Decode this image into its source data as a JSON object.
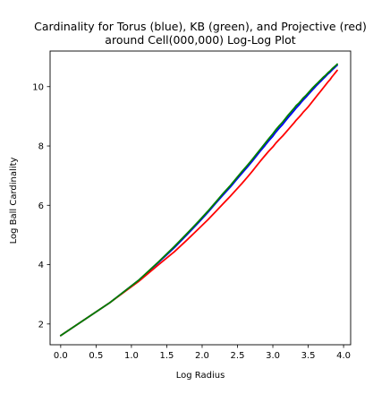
{
  "chart_data": {
    "type": "line",
    "title_line1": "Cardinality for Torus (blue), KB (green), and Projective (red)",
    "title_line2": "around Cell(000,000) Log-Log Plot",
    "xlabel": "Log Radius",
    "ylabel": "Log Ball Cardinality",
    "xlim": [
      -0.15,
      4.1
    ],
    "ylim": [
      1.3,
      11.2
    ],
    "xticks": [
      0.0,
      0.5,
      1.0,
      1.5,
      2.0,
      2.5,
      3.0,
      3.5,
      4.0
    ],
    "xtick_labels": [
      "0.0",
      "0.5",
      "1.0",
      "1.5",
      "2.0",
      "2.5",
      "3.0",
      "3.5",
      "4.0"
    ],
    "yticks": [
      2,
      4,
      6,
      8,
      10
    ],
    "ytick_labels": [
      "2",
      "4",
      "6",
      "8",
      "10"
    ],
    "grid": false,
    "series": [
      {
        "color": "#0000ff",
        "x": [
          0.0,
          0.69,
          1.1,
          1.39,
          1.61,
          1.79,
          1.95,
          2.08,
          2.2,
          2.3,
          2.4,
          2.48,
          2.56,
          2.64,
          2.71,
          2.77,
          2.83,
          2.89,
          2.94,
          3.0,
          3.04,
          3.09,
          3.14,
          3.18,
          3.22,
          3.26,
          3.3,
          3.33,
          3.37,
          3.4,
          3.43,
          3.47,
          3.5,
          3.53,
          3.56,
          3.58,
          3.61,
          3.64,
          3.66,
          3.69,
          3.71,
          3.74,
          3.76,
          3.78,
          3.81,
          3.83,
          3.85,
          3.87,
          3.89,
          3.91
        ],
        "y": [
          1.61,
          2.71,
          3.47,
          4.09,
          4.58,
          5.02,
          5.42,
          5.76,
          6.09,
          6.36,
          6.62,
          6.85,
          7.07,
          7.29,
          7.49,
          7.67,
          7.85,
          8.02,
          8.17,
          8.33,
          8.46,
          8.6,
          8.73,
          8.85,
          8.97,
          9.08,
          9.19,
          9.28,
          9.38,
          9.47,
          9.55,
          9.65,
          9.73,
          9.81,
          9.89,
          9.94,
          10.02,
          10.09,
          10.14,
          10.21,
          10.26,
          10.33,
          10.38,
          10.43,
          10.49,
          10.54,
          10.59,
          10.63,
          10.68,
          10.72
        ]
      },
      {
        "color": "#ff0000",
        "x": [
          0.0,
          0.69,
          1.1,
          1.39,
          1.61,
          1.79,
          1.95,
          2.08,
          2.2,
          2.3,
          2.4,
          2.48,
          2.56,
          2.64,
          2.71,
          2.77,
          2.83,
          2.89,
          2.94,
          3.0,
          3.04,
          3.09,
          3.14,
          3.18,
          3.22,
          3.26,
          3.3,
          3.33,
          3.37,
          3.4,
          3.43,
          3.47,
          3.5,
          3.53,
          3.56,
          3.58,
          3.61,
          3.64,
          3.66,
          3.69,
          3.71,
          3.74,
          3.76,
          3.78,
          3.81,
          3.83,
          3.85,
          3.87,
          3.89,
          3.91
        ],
        "y": [
          1.61,
          2.71,
          3.43,
          4.01,
          4.44,
          4.84,
          5.21,
          5.51,
          5.81,
          6.06,
          6.31,
          6.52,
          6.73,
          6.95,
          7.15,
          7.33,
          7.51,
          7.68,
          7.82,
          7.97,
          8.09,
          8.22,
          8.34,
          8.45,
          8.56,
          8.67,
          8.78,
          8.87,
          8.97,
          9.05,
          9.14,
          9.24,
          9.32,
          9.41,
          9.5,
          9.56,
          9.65,
          9.74,
          9.8,
          9.89,
          9.95,
          10.04,
          10.1,
          10.16,
          10.24,
          10.31,
          10.37,
          10.43,
          10.49,
          10.55
        ]
      },
      {
        "color": "#008000",
        "x": [
          0.0,
          0.69,
          1.1,
          1.39,
          1.61,
          1.79,
          1.95,
          2.08,
          2.2,
          2.3,
          2.4,
          2.48,
          2.56,
          2.64,
          2.71,
          2.77,
          2.83,
          2.89,
          2.94,
          3.0,
          3.04,
          3.09,
          3.14,
          3.18,
          3.22,
          3.26,
          3.3,
          3.33,
          3.37,
          3.4,
          3.43,
          3.47,
          3.5,
          3.53,
          3.56,
          3.58,
          3.61,
          3.64,
          3.66,
          3.69,
          3.71,
          3.74,
          3.76,
          3.78,
          3.81,
          3.83,
          3.85,
          3.87,
          3.89,
          3.91
        ],
        "y": [
          1.61,
          2.71,
          3.47,
          4.11,
          4.62,
          5.06,
          5.46,
          5.8,
          6.13,
          6.41,
          6.67,
          6.9,
          7.13,
          7.35,
          7.55,
          7.73,
          7.91,
          8.09,
          8.24,
          8.41,
          8.54,
          8.68,
          8.81,
          8.93,
          9.05,
          9.16,
          9.27,
          9.36,
          9.45,
          9.53,
          9.62,
          9.71,
          9.79,
          9.87,
          9.95,
          10.0,
          10.07,
          10.14,
          10.19,
          10.26,
          10.31,
          10.37,
          10.42,
          10.47,
          10.53,
          10.58,
          10.63,
          10.67,
          10.71,
          10.76
        ]
      }
    ]
  }
}
